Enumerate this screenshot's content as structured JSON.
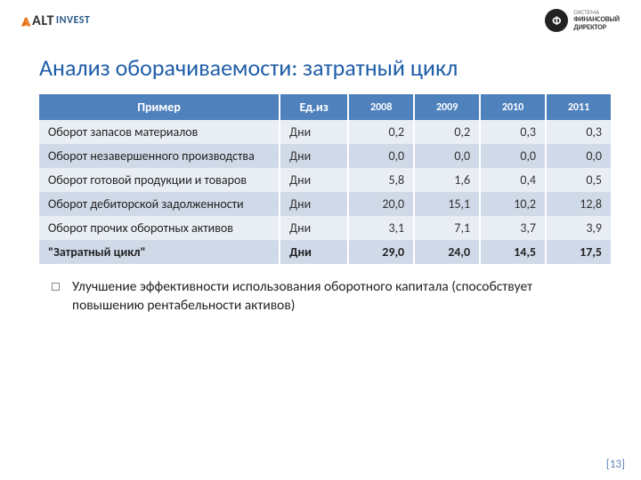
{
  "header": {
    "left_logo": {
      "glyph": "⩓",
      "alt": "ALT",
      "invest": "INVEST"
    },
    "right_logo": {
      "mark": "Ф",
      "line1": "СИСТЕМА",
      "line2": "ФИНАНСОВЫЙ",
      "line3": "ДИРЕКТОР"
    }
  },
  "title": "Анализ оборачиваемости: затратный цикл",
  "table": {
    "columns": {
      "name": "Пример",
      "unit": "Ед.из",
      "years": [
        "2008",
        "2009",
        "2010",
        "2011"
      ]
    },
    "rows": [
      {
        "label": "Оборот запасов материалов",
        "unit": "Дни",
        "values": [
          "0,2",
          "0,2",
          "0,3",
          "0,3"
        ],
        "row_class": "odd"
      },
      {
        "label": "Оборот незавершенного производства",
        "unit": "Дни",
        "values": [
          "0,0",
          "0,0",
          "0,0",
          "0,0"
        ],
        "row_class": "even"
      },
      {
        "label": "Оборот готовой продукции и товаров",
        "unit": "Дни",
        "values": [
          "5,8",
          "1,6",
          "0,4",
          "0,5"
        ],
        "row_class": "odd"
      },
      {
        "label": "Оборот дебиторской задолженности",
        "unit": "Дни",
        "values": [
          "20,0",
          "15,1",
          "10,2",
          "12,8"
        ],
        "row_class": "even"
      },
      {
        "label": "Оборот прочих оборотных активов",
        "unit": "Дни",
        "values": [
          "3,1",
          "7,1",
          "3,7",
          "3,9"
        ],
        "row_class": "odd"
      },
      {
        "label": "\"Затратный цикл\"",
        "unit": "Дни",
        "values": [
          "29,0",
          "24,0",
          "14,5",
          "17,5"
        ],
        "row_class": "even total"
      }
    ]
  },
  "bullet": "Улучшение эффективности использования оборотного капитала (способствует повышению рентабельности активов)",
  "page_number": "[13]",
  "colors": {
    "title": "#1f5ea8",
    "header_bg": "#4f81bd",
    "row_odd": "#e9eef5",
    "row_even": "#d0d9e8"
  }
}
